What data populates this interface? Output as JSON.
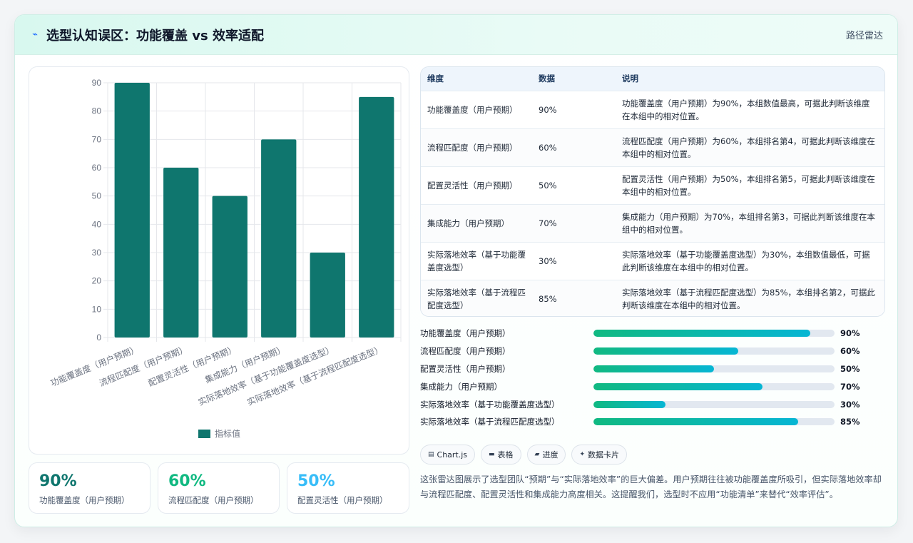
{
  "header": {
    "title": "选型认知误区：功能覆盖 vs 效率适配",
    "right_label": "路径雷达",
    "title_icon": "wave-icon"
  },
  "chart_data": {
    "type": "bar",
    "categories": [
      "功能覆盖度（用户预期）",
      "流程匹配度（用户预期）",
      "配置灵活性（用户预期）",
      "集成能力（用户预期）",
      "实际落地效率（基于功能覆盖度选型）",
      "实际落地效率（基于流程匹配度选型）"
    ],
    "series": [
      {
        "name": "指标值",
        "values": [
          90,
          60,
          50,
          70,
          30,
          85
        ]
      }
    ],
    "ylim": [
      0,
      90
    ],
    "yticks": [
      0,
      10,
      20,
      30,
      40,
      50,
      60,
      70,
      80,
      90
    ],
    "grid": true,
    "legend": "bottom",
    "color": "#0f766e"
  },
  "table": {
    "headers": [
      "维度",
      "数据",
      "说明"
    ],
    "rows": [
      [
        "功能覆盖度（用户预期）",
        "90%",
        "功能覆盖度（用户预期）为90%，本组数值最高，可据此判断该维度在本组中的相对位置。"
      ],
      [
        "流程匹配度（用户预期）",
        "60%",
        "流程匹配度（用户预期）为60%，本组排名第4，可据此判断该维度在本组中的相对位置。"
      ],
      [
        "配置灵活性（用户预期）",
        "50%",
        "配置灵活性（用户预期）为50%，本组排名第5，可据此判断该维度在本组中的相对位置。"
      ],
      [
        "集成能力（用户预期）",
        "70%",
        "集成能力（用户预期）为70%，本组排名第3，可据此判断该维度在本组中的相对位置。"
      ],
      [
        "实际落地效率（基于功能覆盖度选型）",
        "30%",
        "实际落地效率（基于功能覆盖度选型）为30%，本组数值最低，可据此判断该维度在本组中的相对位置。"
      ],
      [
        "实际落地效率（基于流程匹配度选型）",
        "85%",
        "实际落地效率（基于流程匹配度选型）为85%，本组排名第2，可据此判断该维度在本组中的相对位置。"
      ]
    ]
  },
  "progress": [
    {
      "label": "功能覆盖度（用户预期）",
      "value": 90,
      "text": "90%"
    },
    {
      "label": "流程匹配度（用户预期）",
      "value": 60,
      "text": "60%"
    },
    {
      "label": "配置灵活性（用户预期）",
      "value": 50,
      "text": "50%"
    },
    {
      "label": "集成能力（用户预期）",
      "value": 70,
      "text": "70%"
    },
    {
      "label": "实际落地效率（基于功能覆盖度选型）",
      "value": 30,
      "text": "30%"
    },
    {
      "label": "实际落地效率（基于流程匹配度选型）",
      "value": 85,
      "text": "85%"
    }
  ],
  "kpis": [
    {
      "value": "90%",
      "label": "功能覆盖度（用户预期）",
      "color": "#0f766e"
    },
    {
      "value": "60%",
      "label": "流程匹配度（用户预期）",
      "color": "#10b981"
    },
    {
      "value": "50%",
      "label": "配置灵活性（用户预期）",
      "color": "#38bdf8"
    }
  ],
  "tags": [
    {
      "icon": "chart-icon",
      "glyph": "▤",
      "label": "Chart.js"
    },
    {
      "icon": "table-icon",
      "glyph": "▬",
      "label": "表格"
    },
    {
      "icon": "progress-icon",
      "glyph": "▰",
      "label": "进度"
    },
    {
      "icon": "card-icon",
      "glyph": "✦",
      "label": "数据卡片"
    }
  ],
  "description": "这张雷达图展示了选型团队“预期”与“实际落地效率”的巨大偏差。用户预期往往被功能覆盖度所吸引，但实际落地效率却与流程匹配度、配置灵活性和集成能力高度相关。这提醒我们，选型时不应用“功能清单”来替代“效率评估”。"
}
